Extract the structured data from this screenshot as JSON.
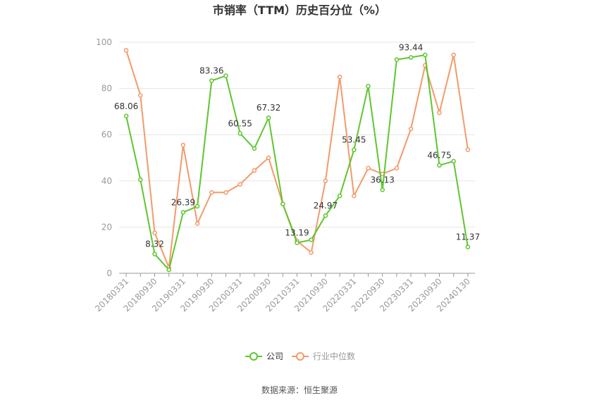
{
  "chart_data": {
    "type": "line",
    "title": "市销率（TTM）历史百分位（%）",
    "categories": [
      "20180331",
      null,
      "20180930",
      null,
      "20190331",
      null,
      "20190930",
      null,
      "20200331",
      null,
      "20200930",
      null,
      "20210331",
      null,
      "20210930",
      null,
      "20220331",
      null,
      "20220930",
      null,
      "20230331",
      null,
      "20230930",
      null,
      "20240130"
    ],
    "series": [
      {
        "name": "公司",
        "color": "#5ec62e",
        "values": [
          68.06,
          40.5,
          8.32,
          1.5,
          26.39,
          29,
          83.36,
          85.5,
          60.55,
          54,
          67.32,
          30,
          13.19,
          14.5,
          24.97,
          33.5,
          53.45,
          81,
          36.13,
          92.5,
          93.44,
          94.5,
          46.75,
          48.5,
          11.37
        ],
        "value_labels": [
          "68.06",
          null,
          "8.32",
          null,
          "26.39",
          null,
          "83.36",
          null,
          "60.55",
          null,
          "67.32",
          null,
          "13.19",
          null,
          "24.97",
          null,
          "53.45",
          null,
          "36.13",
          null,
          "93.44",
          null,
          "46.75",
          null,
          "11.37"
        ]
      },
      {
        "name": "行业中位数",
        "color": "#f39a6b",
        "values": [
          96.5,
          77,
          17.5,
          2.5,
          55.5,
          21.5,
          35,
          35,
          38.5,
          44.5,
          50,
          30,
          14,
          9,
          40,
          85,
          33.5,
          45.5,
          43,
          45.5,
          62.5,
          90,
          69.5,
          94.5,
          53.5
        ]
      }
    ],
    "ylim": [
      0,
      100
    ],
    "yticks": [
      0,
      20,
      40,
      60,
      80,
      100
    ],
    "grid": true,
    "source": "数据来源：恒生聚源"
  }
}
